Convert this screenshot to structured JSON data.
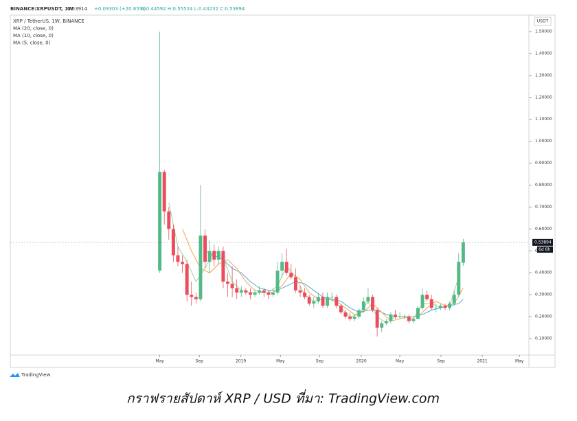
{
  "chart_data": {
    "type": "candlestick",
    "title": "BINANCE:XRPUSDT, 1W",
    "header_price": "0.53914",
    "header_change": "+0.09303 (+20.85%)",
    "header_ohlc": "O:0.44592 H:0.55524 L:0.43232 C:0.53894",
    "legend": [
      "XRP / TetherUS, 1W, BINANCE",
      "MA (20, close, 0)",
      "MA (10, close, 0)",
      "MA (5, close, 0)"
    ],
    "y_axis_label": "USDT",
    "up_color": "#53b987",
    "down_color": "#eb4d5c",
    "x": [
      0,
      2,
      4,
      6,
      8,
      10,
      12,
      14,
      16,
      18,
      20,
      22,
      24,
      26,
      28,
      30,
      32,
      34,
      36,
      38,
      40,
      42,
      44,
      46,
      48,
      50,
      52,
      54,
      56,
      58,
      60,
      62,
      64,
      66,
      68,
      70,
      72,
      74,
      76,
      78,
      80,
      82,
      84,
      86,
      88,
      90,
      92,
      94,
      96,
      98,
      100,
      102,
      104,
      106,
      108,
      110,
      112,
      114,
      116,
      118,
      120,
      122,
      124,
      126,
      128,
      130,
      132,
      134
    ],
    "open": [
      0.41,
      0.86,
      0.68,
      0.6,
      0.48,
      0.45,
      0.44,
      0.3,
      0.29,
      0.28,
      0.57,
      0.45,
      0.5,
      0.46,
      0.5,
      0.36,
      0.35,
      0.33,
      0.31,
      0.32,
      0.31,
      0.3,
      0.31,
      0.32,
      0.31,
      0.3,
      0.31,
      0.41,
      0.45,
      0.4,
      0.38,
      0.32,
      0.31,
      0.29,
      0.26,
      0.27,
      0.29,
      0.25,
      0.29,
      0.29,
      0.25,
      0.22,
      0.2,
      0.19,
      0.2,
      0.23,
      0.27,
      0.29,
      0.23,
      0.15,
      0.17,
      0.18,
      0.21,
      0.2,
      0.2,
      0.2,
      0.18,
      0.19,
      0.24,
      0.3,
      0.28,
      0.24,
      0.24,
      0.25,
      0.24,
      0.26,
      0.3,
      0.44592
    ],
    "high": [
      1.5,
      0.87,
      0.7,
      0.62,
      0.52,
      0.48,
      0.46,
      0.36,
      0.31,
      0.8,
      0.6,
      0.55,
      0.53,
      0.52,
      0.52,
      0.4,
      0.43,
      0.37,
      0.34,
      0.33,
      0.33,
      0.32,
      0.34,
      0.33,
      0.32,
      0.33,
      0.45,
      0.49,
      0.51,
      0.44,
      0.42,
      0.34,
      0.33,
      0.3,
      0.29,
      0.31,
      0.31,
      0.31,
      0.31,
      0.3,
      0.26,
      0.23,
      0.22,
      0.21,
      0.24,
      0.29,
      0.33,
      0.3,
      0.24,
      0.18,
      0.19,
      0.22,
      0.23,
      0.22,
      0.21,
      0.21,
      0.2,
      0.25,
      0.33,
      0.32,
      0.3,
      0.26,
      0.26,
      0.26,
      0.27,
      0.32,
      0.49,
      0.55524
    ],
    "low": [
      0.4,
      0.62,
      0.55,
      0.45,
      0.43,
      0.4,
      0.27,
      0.25,
      0.26,
      0.27,
      0.42,
      0.4,
      0.43,
      0.44,
      0.33,
      0.29,
      0.29,
      0.28,
      0.29,
      0.3,
      0.28,
      0.29,
      0.3,
      0.29,
      0.28,
      0.29,
      0.3,
      0.38,
      0.39,
      0.37,
      0.31,
      0.29,
      0.28,
      0.25,
      0.24,
      0.26,
      0.24,
      0.24,
      0.27,
      0.24,
      0.21,
      0.19,
      0.18,
      0.18,
      0.19,
      0.22,
      0.26,
      0.22,
      0.11,
      0.13,
      0.16,
      0.17,
      0.19,
      0.19,
      0.19,
      0.17,
      0.17,
      0.19,
      0.23,
      0.27,
      0.23,
      0.22,
      0.23,
      0.23,
      0.23,
      0.25,
      0.29,
      0.43232
    ],
    "close": [
      0.86,
      0.68,
      0.6,
      0.48,
      0.45,
      0.44,
      0.3,
      0.29,
      0.28,
      0.57,
      0.45,
      0.5,
      0.46,
      0.5,
      0.36,
      0.35,
      0.33,
      0.31,
      0.32,
      0.31,
      0.3,
      0.31,
      0.32,
      0.31,
      0.3,
      0.31,
      0.41,
      0.45,
      0.4,
      0.38,
      0.32,
      0.31,
      0.29,
      0.26,
      0.27,
      0.29,
      0.25,
      0.29,
      0.29,
      0.25,
      0.22,
      0.2,
      0.19,
      0.2,
      0.23,
      0.27,
      0.29,
      0.23,
      0.15,
      0.17,
      0.18,
      0.21,
      0.2,
      0.2,
      0.2,
      0.18,
      0.19,
      0.24,
      0.3,
      0.28,
      0.24,
      0.24,
      0.25,
      0.24,
      0.26,
      0.3,
      0.45,
      0.53894
    ],
    "series": [
      {
        "name": "MA (20, close, 0)",
        "color": "#4aa8e8",
        "x": [
          20,
          24,
          28,
          32,
          36,
          40,
          44,
          48,
          52,
          56,
          60,
          64,
          68,
          72,
          76,
          80,
          84,
          88,
          92,
          96,
          100,
          104,
          108,
          112,
          116,
          120,
          124,
          128,
          132,
          134
        ],
        "values": [
          0.5,
          0.48,
          0.46,
          0.42,
          0.4,
          0.36,
          0.33,
          0.32,
          0.32,
          0.34,
          0.36,
          0.35,
          0.32,
          0.29,
          0.28,
          0.27,
          0.24,
          0.22,
          0.23,
          0.23,
          0.21,
          0.2,
          0.2,
          0.2,
          0.21,
          0.23,
          0.24,
          0.25,
          0.26,
          0.28
        ]
      },
      {
        "name": "MA (10, close, 0)",
        "color": "#f5a34a",
        "x": [
          10,
          14,
          18,
          22,
          26,
          30,
          34,
          38,
          42,
          46,
          50,
          54,
          58,
          62,
          66,
          70,
          74,
          78,
          82,
          86,
          90,
          94,
          98,
          102,
          106,
          110,
          114,
          118,
          122,
          126,
          130,
          134
        ],
        "values": [
          0.6,
          0.5,
          0.42,
          0.4,
          0.44,
          0.46,
          0.42,
          0.36,
          0.32,
          0.31,
          0.31,
          0.34,
          0.4,
          0.37,
          0.31,
          0.28,
          0.28,
          0.27,
          0.24,
          0.21,
          0.22,
          0.26,
          0.22,
          0.18,
          0.19,
          0.2,
          0.2,
          0.24,
          0.27,
          0.25,
          0.26,
          0.33
        ]
      },
      {
        "name": "MA (5, close, 0)",
        "color": "#9ad4a0",
        "x": [
          4,
          8,
          12,
          16,
          20,
          24,
          28,
          32,
          36,
          40,
          44,
          48,
          52,
          56,
          60,
          64,
          68,
          72,
          76,
          80,
          84,
          88,
          92,
          96,
          100,
          104,
          108,
          112,
          116,
          120,
          124,
          128,
          132
        ],
        "values": [
          0.72,
          0.52,
          0.45,
          0.36,
          0.42,
          0.5,
          0.47,
          0.36,
          0.32,
          0.31,
          0.31,
          0.31,
          0.34,
          0.43,
          0.38,
          0.3,
          0.27,
          0.28,
          0.28,
          0.24,
          0.2,
          0.21,
          0.27,
          0.2,
          0.17,
          0.2,
          0.2,
          0.19,
          0.26,
          0.26,
          0.24,
          0.25,
          0.38
        ]
      }
    ],
    "last_price": 0.53894,
    "last_price_label": "0.53894",
    "countdown": "6d 6h",
    "xlim": [
      -66,
      163
    ],
    "xticks": [
      {
        "value": 0,
        "label": "May"
      },
      {
        "value": 17.5,
        "label": "Sep"
      },
      {
        "value": 35.8,
        "label": "2019"
      },
      {
        "value": 53.3,
        "label": "May"
      },
      {
        "value": 70.6,
        "label": "Sep"
      },
      {
        "value": 89,
        "label": "2020"
      },
      {
        "value": 106,
        "label": "May"
      },
      {
        "value": 124.2,
        "label": "Sep"
      },
      {
        "value": 142.4,
        "label": "2021"
      },
      {
        "value": 158.8,
        "label": "May"
      }
    ],
    "ylim": [
      0.025,
      1.575
    ],
    "yticks": [
      {
        "value": 0.1,
        "label": "0.10000"
      },
      {
        "value": 0.2,
        "label": "0.20000"
      },
      {
        "value": 0.3,
        "label": "0.30000"
      },
      {
        "value": 0.4,
        "label": "0.40000"
      },
      {
        "value": 0.5,
        "label": "0.50000"
      },
      {
        "value": 0.6,
        "label": "0.60000"
      },
      {
        "value": 0.7,
        "label": "0.70000"
      },
      {
        "value": 0.8,
        "label": "0.80000"
      },
      {
        "value": 0.9,
        "label": "0.90000"
      },
      {
        "value": 1.0,
        "label": "1.00000"
      },
      {
        "value": 1.1,
        "label": "1.10000"
      },
      {
        "value": 1.2,
        "label": "1.20000"
      },
      {
        "value": 1.3,
        "label": "1.30000"
      },
      {
        "value": 1.4,
        "label": "1.40000"
      },
      {
        "value": 1.5,
        "label": "1.50000"
      }
    ],
    "grid": false,
    "brand": "TradingView",
    "caption": "กราฟรายสัปดาห์ XRP / USD ที่มา: TradingView.com"
  }
}
